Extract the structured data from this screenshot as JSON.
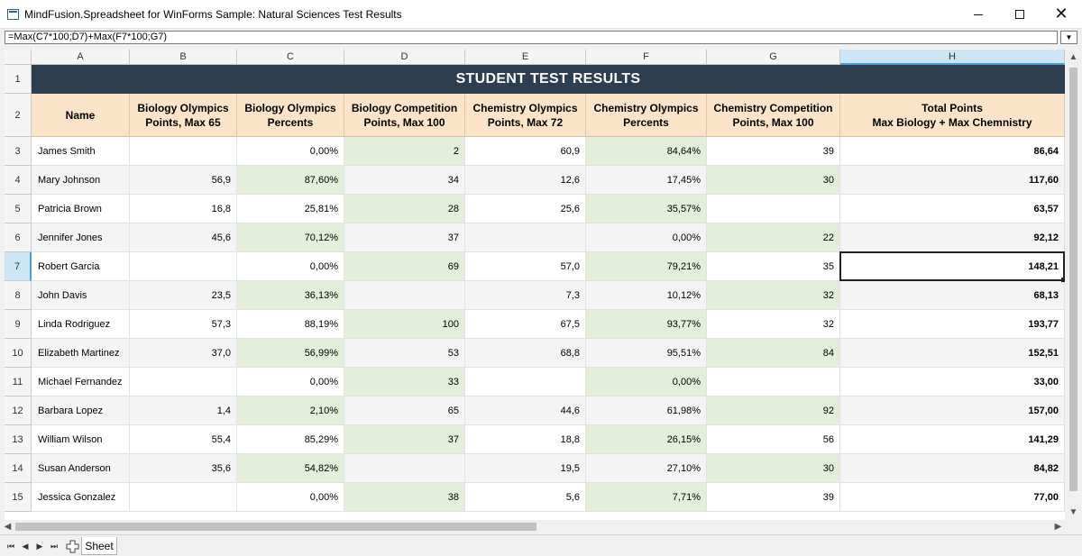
{
  "window": {
    "title": "MindFusion.Spreadsheet for WinForms Sample: Natural Sciences Test Results",
    "minimize_icon": "minimize-icon",
    "maximize_icon": "maximize-icon",
    "close_icon": "close-icon"
  },
  "formula_bar": {
    "value": "=Max(C7*100;D7)+Max(F7*100;G7)"
  },
  "columns": [
    "A",
    "B",
    "C",
    "D",
    "E",
    "F",
    "G",
    "H"
  ],
  "selected_column": "H",
  "selected_row": "7",
  "sheet_title": "STUDENT TEST RESULTS",
  "headers": [
    "Name",
    "Biology Olympics\nPoints, Max 65",
    "Biology Olympics\nPercents",
    "Biology Competition\nPoints, Max 100",
    "Chemistry Olympics\nPoints, Max 72",
    "Chemistry Olympics\nPercents",
    "Chemistry Competition\nPoints, Max 100",
    "Total Points\nMax Biology + Max Chemnistry"
  ],
  "rows": [
    {
      "num": "3",
      "name": "James Smith",
      "b": "",
      "c": "0,00%",
      "d": "2",
      "e": "60,9",
      "f": "84,64%",
      "g": "39",
      "h": "86,64"
    },
    {
      "num": "4",
      "name": "Mary Johnson",
      "b": "56,9",
      "c": "87,60%",
      "d": "34",
      "e": "12,6",
      "f": "17,45%",
      "g": "30",
      "h": "117,60"
    },
    {
      "num": "5",
      "name": "Patricia Brown",
      "b": "16,8",
      "c": "25,81%",
      "d": "28",
      "e": "25,6",
      "f": "35,57%",
      "g": "",
      "h": "63,57"
    },
    {
      "num": "6",
      "name": "Jennifer Jones",
      "b": "45,6",
      "c": "70,12%",
      "d": "37",
      "e": "",
      "f": "0,00%",
      "g": "22",
      "h": "92,12"
    },
    {
      "num": "7",
      "name": "Robert Garcia",
      "b": "",
      "c": "0,00%",
      "d": "69",
      "e": "57,0",
      "f": "79,21%",
      "g": "35",
      "h": "148,21"
    },
    {
      "num": "8",
      "name": "John Davis",
      "b": "23,5",
      "c": "36,13%",
      "d": "",
      "e": "7,3",
      "f": "10,12%",
      "g": "32",
      "h": "68,13"
    },
    {
      "num": "9",
      "name": "Linda Rodriguez",
      "b": "57,3",
      "c": "88,19%",
      "d": "100",
      "e": "67,5",
      "f": "93,77%",
      "g": "32",
      "h": "193,77"
    },
    {
      "num": "10",
      "name": "Elizabeth Martinez",
      "b": "37,0",
      "c": "56,99%",
      "d": "53",
      "e": "68,8",
      "f": "95,51%",
      "g": "84",
      "h": "152,51"
    },
    {
      "num": "11",
      "name": "Michael Fernandez",
      "b": "",
      "c": "0,00%",
      "d": "33",
      "e": "",
      "f": "0,00%",
      "g": "",
      "h": "33,00"
    },
    {
      "num": "12",
      "name": "Barbara Lopez",
      "b": "1,4",
      "c": "2,10%",
      "d": "65",
      "e": "44,6",
      "f": "61,98%",
      "g": "92",
      "h": "157,00"
    },
    {
      "num": "13",
      "name": "William Wilson",
      "b": "55,4",
      "c": "85,29%",
      "d": "37",
      "e": "18,8",
      "f": "26,15%",
      "g": "56",
      "h": "141,29"
    },
    {
      "num": "14",
      "name": "Susan Anderson",
      "b": "35,6",
      "c": "54,82%",
      "d": "",
      "e": "19,5",
      "f": "27,10%",
      "g": "30",
      "h": "84,82"
    },
    {
      "num": "15",
      "name": "Jessica Gonzalez",
      "b": "",
      "c": "0,00%",
      "d": "38",
      "e": "5,6",
      "f": "7,71%",
      "g": "39",
      "h": "77,00"
    }
  ],
  "header_row_labels": [
    "1",
    "2"
  ],
  "sheet_tabs": [
    "Sheet"
  ],
  "colors": {
    "title_bg": "#2c3e50",
    "header_bg": "#fce4c8",
    "highlight_green": "#e3efda",
    "selection_blue": "#cde6f7"
  }
}
